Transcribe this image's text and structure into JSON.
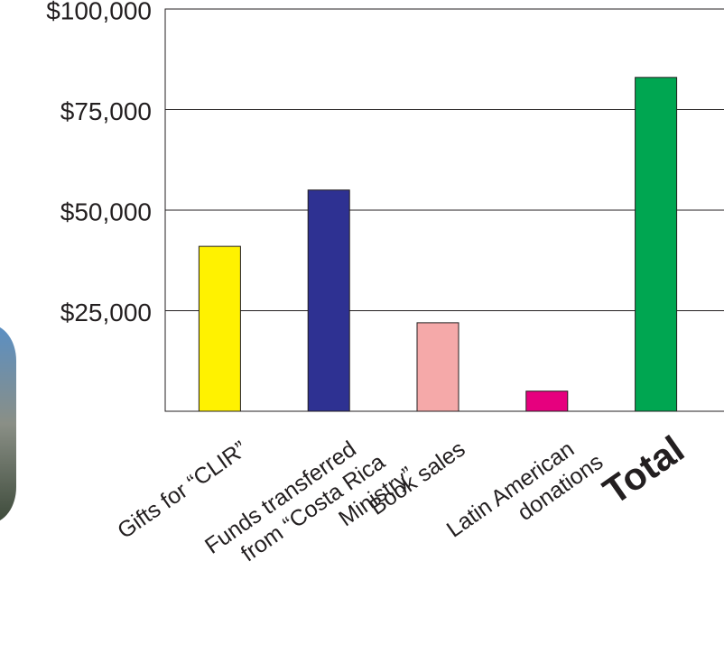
{
  "chart_data": {
    "type": "bar",
    "categories": [
      "Gifts for “CLIR”",
      "Funds transferred\nfrom “Costa Rica\nMinistry”",
      "Book sales",
      "Latin American\ndonations",
      "Total"
    ],
    "values": [
      41000,
      55000,
      22000,
      5000,
      83000
    ],
    "colors": [
      "#fff200",
      "#2e3192",
      "#f5a9a9",
      "#e6007e",
      "#00a651"
    ],
    "ylim": [
      0,
      100000
    ],
    "yticks": [
      {
        "value": 25000,
        "label": "$25,000"
      },
      {
        "value": 50000,
        "label": "$50,000"
      },
      {
        "value": 75000,
        "label": "$75,000"
      },
      {
        "value": 100000,
        "label": "$100,000"
      }
    ],
    "grid": true
  }
}
